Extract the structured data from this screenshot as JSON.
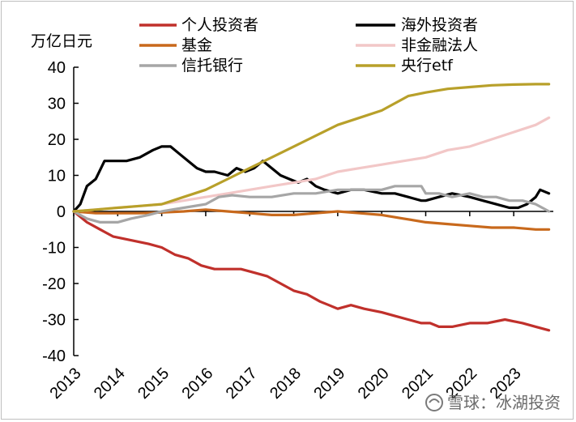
{
  "chart_data": {
    "type": "line",
    "unit_label": "万亿日元",
    "x_ticks": [
      "2013",
      "2014",
      "2015",
      "2016",
      "2017",
      "2018",
      "2019",
      "2020",
      "2021",
      "2022",
      "2023"
    ],
    "y_ticks": [
      "40",
      "30",
      "20",
      "10",
      "0",
      "-10",
      "-20",
      "-30",
      "-40"
    ],
    "ylim": [
      -40,
      40
    ],
    "xlim": [
      2013,
      2023.9
    ],
    "grid": false,
    "legend_position": "top",
    "series": [
      {
        "name": "个人投资者",
        "color": "#c0302b",
        "points": [
          [
            2013,
            0
          ],
          [
            2013.3,
            -3
          ],
          [
            2013.6,
            -5
          ],
          [
            2013.9,
            -7
          ],
          [
            2014.3,
            -8
          ],
          [
            2014.7,
            -9
          ],
          [
            2015,
            -10
          ],
          [
            2015.3,
            -12
          ],
          [
            2015.6,
            -13
          ],
          [
            2015.9,
            -15
          ],
          [
            2016.2,
            -16
          ],
          [
            2016.5,
            -16
          ],
          [
            2016.8,
            -16
          ],
          [
            2017.1,
            -17
          ],
          [
            2017.4,
            -18
          ],
          [
            2017.7,
            -20
          ],
          [
            2018,
            -22
          ],
          [
            2018.3,
            -23
          ],
          [
            2018.6,
            -25
          ],
          [
            2018.8,
            -26
          ],
          [
            2019,
            -27
          ],
          [
            2019.3,
            -26
          ],
          [
            2019.6,
            -27
          ],
          [
            2020,
            -28
          ],
          [
            2020.3,
            -29
          ],
          [
            2020.6,
            -30
          ],
          [
            2020.9,
            -31
          ],
          [
            2021.1,
            -31
          ],
          [
            2021.3,
            -32
          ],
          [
            2021.6,
            -32
          ],
          [
            2022,
            -31
          ],
          [
            2022.4,
            -31
          ],
          [
            2022.8,
            -30
          ],
          [
            2023.2,
            -31
          ],
          [
            2023.5,
            -32
          ],
          [
            2023.8,
            -33
          ]
        ]
      },
      {
        "name": "海外投资者",
        "color": "#000000",
        "points": [
          [
            2013,
            0
          ],
          [
            2013.15,
            2
          ],
          [
            2013.3,
            7
          ],
          [
            2013.5,
            9
          ],
          [
            2013.7,
            14
          ],
          [
            2013.9,
            14
          ],
          [
            2014.2,
            14
          ],
          [
            2014.5,
            15
          ],
          [
            2014.8,
            17
          ],
          [
            2015,
            18
          ],
          [
            2015.2,
            18
          ],
          [
            2015.4,
            16
          ],
          [
            2015.6,
            14
          ],
          [
            2015.8,
            12
          ],
          [
            2016,
            11
          ],
          [
            2016.2,
            11
          ],
          [
            2016.5,
            10
          ],
          [
            2016.7,
            12
          ],
          [
            2016.9,
            11
          ],
          [
            2017.1,
            12
          ],
          [
            2017.3,
            14
          ],
          [
            2017.5,
            12
          ],
          [
            2017.7,
            10
          ],
          [
            2017.9,
            9
          ],
          [
            2018.1,
            8
          ],
          [
            2018.3,
            9
          ],
          [
            2018.5,
            7
          ],
          [
            2018.7,
            6
          ],
          [
            2019,
            5
          ],
          [
            2019.3,
            6
          ],
          [
            2019.6,
            6
          ],
          [
            2020,
            5
          ],
          [
            2020.3,
            5
          ],
          [
            2020.6,
            4
          ],
          [
            2020.9,
            3
          ],
          [
            2021,
            3
          ],
          [
            2021.3,
            4
          ],
          [
            2021.6,
            5
          ],
          [
            2022,
            4
          ],
          [
            2022.3,
            3
          ],
          [
            2022.6,
            2
          ],
          [
            2022.9,
            1
          ],
          [
            2023.1,
            1
          ],
          [
            2023.3,
            2
          ],
          [
            2023.5,
            4
          ],
          [
            2023.6,
            6
          ],
          [
            2023.8,
            5
          ]
        ]
      },
      {
        "name": "基金",
        "color": "#c8691c",
        "points": [
          [
            2013,
            0
          ],
          [
            2013.5,
            -0.5
          ],
          [
            2014,
            -0.5
          ],
          [
            2014.5,
            -0.5
          ],
          [
            2015,
            -0.3
          ],
          [
            2015.5,
            0
          ],
          [
            2016,
            0.5
          ],
          [
            2016.5,
            0
          ],
          [
            2017,
            -0.5
          ],
          [
            2017.5,
            -1
          ],
          [
            2018,
            -1
          ],
          [
            2018.5,
            -0.5
          ],
          [
            2019,
            0
          ],
          [
            2019.5,
            -0.5
          ],
          [
            2020,
            -1
          ],
          [
            2020.5,
            -2
          ],
          [
            2021,
            -3
          ],
          [
            2021.5,
            -3.5
          ],
          [
            2022,
            -4
          ],
          [
            2022.5,
            -4.5
          ],
          [
            2023,
            -4.5
          ],
          [
            2023.5,
            -5
          ],
          [
            2023.8,
            -5
          ]
        ]
      },
      {
        "name": "非金融法人",
        "color": "#f2c7c7",
        "points": [
          [
            2013,
            0
          ],
          [
            2013.5,
            0.5
          ],
          [
            2014,
            1
          ],
          [
            2014.5,
            1.5
          ],
          [
            2015,
            2
          ],
          [
            2015.5,
            3
          ],
          [
            2016,
            4
          ],
          [
            2016.5,
            5
          ],
          [
            2017,
            6
          ],
          [
            2017.5,
            7
          ],
          [
            2018,
            8
          ],
          [
            2018.5,
            9
          ],
          [
            2019,
            11
          ],
          [
            2019.5,
            12
          ],
          [
            2020,
            13
          ],
          [
            2020.5,
            14
          ],
          [
            2021,
            15
          ],
          [
            2021.5,
            17
          ],
          [
            2022,
            18
          ],
          [
            2022.5,
            20
          ],
          [
            2023,
            22
          ],
          [
            2023.5,
            24
          ],
          [
            2023.8,
            26
          ]
        ]
      },
      {
        "name": "信托银行",
        "color": "#a6a6a6",
        "points": [
          [
            2013,
            0
          ],
          [
            2013.3,
            -2
          ],
          [
            2013.6,
            -3
          ],
          [
            2014,
            -3
          ],
          [
            2014.3,
            -2
          ],
          [
            2014.7,
            -1
          ],
          [
            2015,
            0
          ],
          [
            2015.5,
            1
          ],
          [
            2016,
            2
          ],
          [
            2016.3,
            4
          ],
          [
            2016.6,
            4.5
          ],
          [
            2017,
            4
          ],
          [
            2017.5,
            4
          ],
          [
            2018,
            5
          ],
          [
            2018.5,
            5
          ],
          [
            2019,
            6
          ],
          [
            2019.5,
            6
          ],
          [
            2020,
            6
          ],
          [
            2020.3,
            7
          ],
          [
            2020.6,
            7
          ],
          [
            2020.9,
            7
          ],
          [
            2021,
            5
          ],
          [
            2021.3,
            5
          ],
          [
            2021.6,
            4
          ],
          [
            2022,
            5
          ],
          [
            2022.3,
            4
          ],
          [
            2022.6,
            4
          ],
          [
            2022.9,
            3
          ],
          [
            2023.2,
            3
          ],
          [
            2023.5,
            2
          ],
          [
            2023.8,
            0
          ]
        ]
      },
      {
        "name": "央行etf",
        "color": "#b8a02a",
        "points": [
          [
            2013,
            0
          ],
          [
            2013.5,
            0.5
          ],
          [
            2014,
            1
          ],
          [
            2014.5,
            1.5
          ],
          [
            2015,
            2
          ],
          [
            2015.5,
            4
          ],
          [
            2016,
            6
          ],
          [
            2016.5,
            9
          ],
          [
            2017,
            12
          ],
          [
            2017.5,
            15
          ],
          [
            2018,
            18
          ],
          [
            2018.5,
            21
          ],
          [
            2019,
            24
          ],
          [
            2019.5,
            26
          ],
          [
            2020,
            28
          ],
          [
            2020.3,
            30
          ],
          [
            2020.6,
            32
          ],
          [
            2021,
            33
          ],
          [
            2021.5,
            34
          ],
          [
            2022,
            34.5
          ],
          [
            2022.5,
            35
          ],
          [
            2023,
            35.2
          ],
          [
            2023.5,
            35.3
          ],
          [
            2023.8,
            35.3
          ]
        ]
      }
    ]
  },
  "watermark": "雪球：冰湖投资",
  "watermark_icon": "snowball-logo-icon",
  "colors": {
    "axis": "#000000",
    "background": "#ffffff"
  }
}
